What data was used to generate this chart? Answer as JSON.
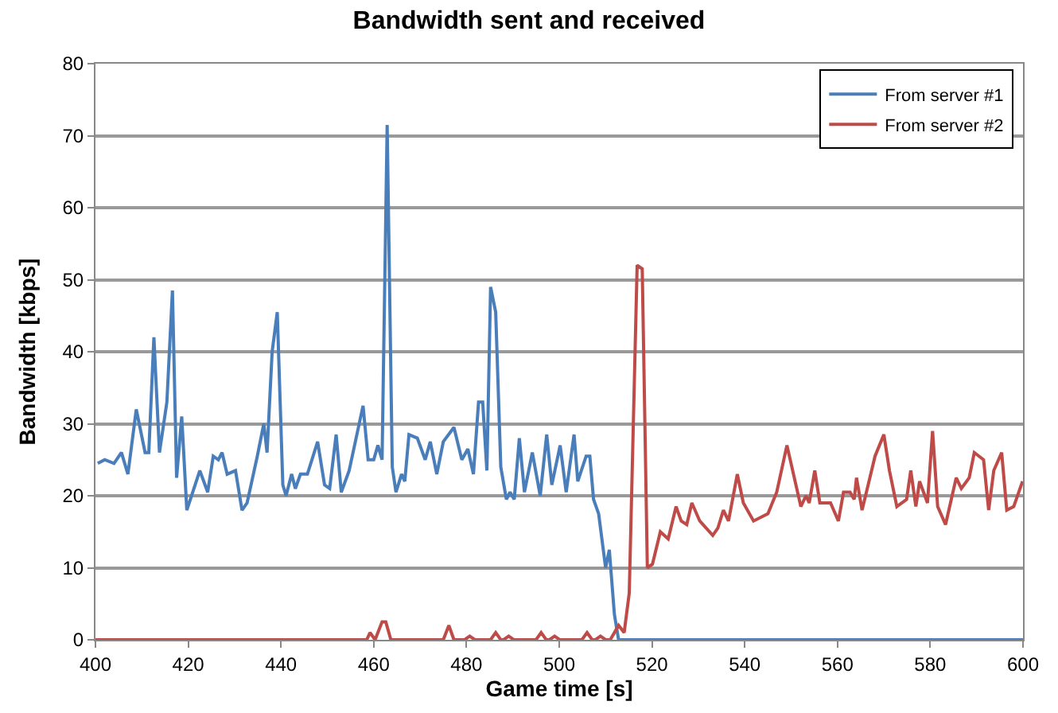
{
  "chart_data": {
    "type": "line",
    "title": "Bandwidth sent and received",
    "xlabel": "Game time [s]",
    "ylabel": "Bandwidth [kbps]",
    "xlim": [
      400,
      600
    ],
    "xticks": [
      400,
      420,
      440,
      460,
      480,
      500,
      520,
      540,
      560,
      580,
      600
    ],
    "ylim": [
      0,
      80
    ],
    "yticks": [
      0,
      10,
      20,
      30,
      40,
      50,
      60,
      70,
      80
    ],
    "grid": "y",
    "legend": "top right",
    "marker": "none",
    "line_style": "solid",
    "series": [
      {
        "name": "From server #1",
        "color": "#4a7ebb",
        "x": [
          400.5,
          402,
          404,
          405.6,
          407,
          408.8,
          410.7,
          411.5,
          412.6,
          413.8,
          415.4,
          416.6,
          417.5,
          418.6,
          419.7,
          422.5,
          424.2,
          425.4,
          426.5,
          427.3,
          428.4,
          430.2,
          431.6,
          432.7,
          434.9,
          436.3,
          437,
          438.1,
          439.2,
          440.4,
          441.1,
          442.3,
          443.1,
          444.2,
          445.7,
          447.9,
          449.4,
          450.5,
          451.9,
          453,
          454.7,
          457.7,
          458.8,
          460,
          460.9,
          461.8,
          462.9,
          464,
          464.8,
          466,
          466.7,
          467.6,
          469.4,
          471.1,
          472.2,
          473.6,
          475,
          477.3,
          479,
          480.3,
          481.5,
          482.6,
          483.5,
          484.4,
          485.2,
          486.3,
          487.4,
          488.6,
          489.4,
          490.3,
          491.4,
          492.5,
          494.2,
          495.9,
          497.3,
          498.4,
          500.2,
          501.5,
          503.2,
          504,
          505.8,
          506.6,
          507.4,
          508.5,
          510,
          510.8,
          511.9,
          512.8,
          600
        ],
        "values": [
          24.5,
          25,
          24.5,
          26,
          23,
          32,
          26,
          26,
          42,
          26,
          33,
          48.5,
          22.5,
          31,
          18,
          23.5,
          20.5,
          25.5,
          25,
          26,
          23,
          23.5,
          18,
          19,
          25.5,
          30,
          26,
          40,
          45.5,
          21.5,
          20,
          23,
          21,
          23,
          23,
          27.5,
          21.5,
          21,
          28.5,
          20.5,
          23.5,
          32.5,
          25,
          25,
          27,
          25,
          71.5,
          24,
          20.5,
          23,
          22,
          28.5,
          28,
          25,
          27.5,
          23,
          27.5,
          29.5,
          25,
          26.5,
          23,
          33,
          33,
          23.5,
          49,
          45.5,
          24,
          19.5,
          20.5,
          19.5,
          28,
          20.5,
          26,
          20,
          28.5,
          21.5,
          27,
          20.5,
          28.5,
          22,
          25.5,
          25.5,
          19.5,
          17.5,
          10,
          12.5,
          3.5,
          0,
          0
        ]
      },
      {
        "name": "From server #2",
        "color": "#be4b48",
        "x": [
          400,
          458.5,
          459.2,
          460.3,
          461.8,
          462.6,
          463.7,
          475,
          476.2,
          477.3,
          479.6,
          480.7,
          481.8,
          485.2,
          486.3,
          487.4,
          488,
          489.1,
          490.2,
          495,
          496.1,
          497.2,
          497.9,
          499,
          500.1,
          504.9,
          506,
          507.1,
          507.8,
          508.9,
          510,
          511,
          512.8,
          514,
          515.1,
          516.8,
          517.9,
          519,
          520.1,
          521.8,
          523.5,
          525.2,
          526.3,
          527.5,
          528.6,
          530.3,
          533.1,
          534.2,
          535.4,
          536.5,
          538.4,
          539.7,
          541.9,
          545,
          546.9,
          549.1,
          552.1,
          553.2,
          553.9,
          555.1,
          556.2,
          558.5,
          560.2,
          561.3,
          562.7,
          563.6,
          564.1,
          565.3,
          568.1,
          570,
          571.2,
          572.8,
          574.9,
          575.8,
          576.9,
          577.7,
          579.4,
          580.5,
          581.6,
          583.3,
          585.6,
          586.7,
          588.4,
          589.5,
          591.5,
          592.6,
          593.7,
          595.4,
          596.5,
          598,
          599.9
        ],
        "values": [
          0,
          0,
          1,
          0,
          2.5,
          2.5,
          0,
          0,
          2,
          0,
          0,
          0.5,
          0,
          0,
          1,
          0,
          0,
          0.5,
          0,
          0,
          1,
          0,
          0,
          0.5,
          0,
          0,
          1,
          0,
          0,
          0.5,
          0,
          0,
          2,
          1,
          6.5,
          52,
          51.5,
          10,
          10.5,
          15,
          14,
          18.5,
          16.5,
          16,
          19,
          16.5,
          14.5,
          15.5,
          18,
          16.5,
          23,
          19,
          16.5,
          17.5,
          20.5,
          27,
          18.5,
          20,
          19,
          23.5,
          19,
          19,
          16.5,
          20.5,
          20.5,
          19.5,
          22.5,
          18,
          25.5,
          28.5,
          23.5,
          18.5,
          19.5,
          23.5,
          18.5,
          22,
          19,
          29,
          18.5,
          16,
          22.5,
          21,
          22.5,
          26,
          25,
          18,
          23.5,
          26,
          18,
          18.5,
          22
        ]
      }
    ]
  }
}
